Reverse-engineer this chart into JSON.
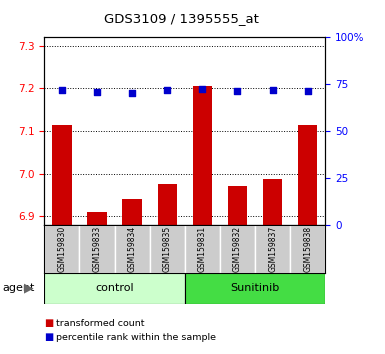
{
  "title": "GDS3109 / 1395555_at",
  "samples": [
    "GSM159830",
    "GSM159833",
    "GSM159834",
    "GSM159835",
    "GSM159831",
    "GSM159832",
    "GSM159837",
    "GSM159838"
  ],
  "bar_values": [
    7.115,
    6.91,
    6.94,
    6.975,
    7.205,
    6.972,
    6.987,
    7.115
  ],
  "percentile_values": [
    72,
    71,
    70.5,
    72,
    72.5,
    71.5,
    72,
    71.5
  ],
  "ylim_left": [
    6.88,
    7.32
  ],
  "ylim_right": [
    0,
    100
  ],
  "yticks_left": [
    6.9,
    7.0,
    7.1,
    7.2,
    7.3
  ],
  "yticks_right": [
    0,
    25,
    50,
    75,
    100
  ],
  "bar_color": "#cc0000",
  "dot_color": "#0000cc",
  "bar_width": 0.55,
  "control_color": "#ccffcc",
  "sunitinib_color": "#44dd44",
  "sample_bg_color": "#cccccc",
  "agent_label": "agent",
  "legend_items": [
    {
      "label": "transformed count",
      "color": "#cc0000"
    },
    {
      "label": "percentile rank within the sample",
      "color": "#0000cc"
    }
  ]
}
